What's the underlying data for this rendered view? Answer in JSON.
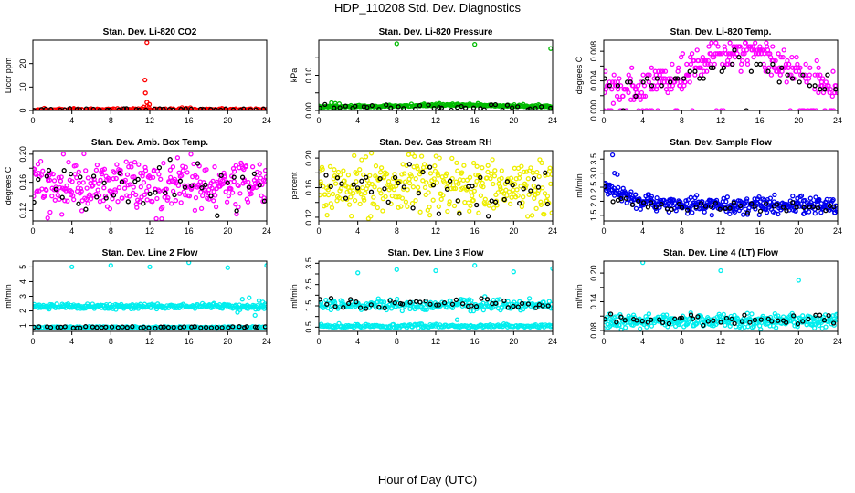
{
  "figure": {
    "title": "HDP_110208 Std. Dev. Diagnostics",
    "xlabel": "Hour of Day (UTC)"
  },
  "chart_data": [
    {
      "type": "scatter",
      "title": "Stan. Dev. Li-820 CO2",
      "ylabel": "Licor ppm",
      "xlim": [
        0,
        24
      ],
      "ylim": [
        0,
        30
      ],
      "xticks": [
        0,
        4,
        8,
        12,
        16,
        20,
        24
      ],
      "yticks": [
        0,
        10,
        20
      ],
      "xtick_labels": [
        "0",
        "4",
        "8",
        "12",
        "16",
        "20",
        "24"
      ],
      "ytick_labels": [
        "0",
        "10",
        "20"
      ],
      "series": [
        {
          "name": "red",
          "color": "#ff0000",
          "gen": {
            "kind": "const",
            "base": 0.4,
            "noise": 0.25,
            "n": 170,
            "seed": 11
          },
          "points": [
            [
              11.7,
              29
            ],
            [
              11.5,
              13
            ],
            [
              11.55,
              7.5
            ],
            [
              11.7,
              3.5
            ],
            [
              11.95,
              2.6
            ],
            [
              11.75,
              1.8
            ],
            [
              11.35,
              1.5
            ],
            [
              11.9,
              1.3
            ],
            [
              15.3,
              1.2
            ],
            [
              4.2,
              0.9
            ]
          ]
        },
        {
          "name": "black",
          "color": "#000000",
          "gen": {
            "kind": "const",
            "base": 0.45,
            "noise": 0.2,
            "n": 40,
            "seed": 12
          }
        }
      ]
    },
    {
      "type": "scatter",
      "title": "Stan. Dev. Li-820 Pressure",
      "ylabel": "kPa",
      "xlim": [
        0,
        24
      ],
      "ylim": [
        0,
        0.2
      ],
      "xticks": [
        0,
        4,
        8,
        12,
        16,
        20,
        24
      ],
      "yticks": [
        0,
        0.05,
        0.1,
        0.15
      ],
      "xtick_labels": [
        "0",
        "4",
        "8",
        "12",
        "16",
        "20",
        "24"
      ],
      "ytick_labels": [
        "0.00",
        "",
        "0.10",
        ""
      ],
      "series": [
        {
          "name": "green",
          "color": "#00bb00",
          "gen": {
            "kind": "bump",
            "base": 0.009,
            "amp": 0.005,
            "peak": 14,
            "noise": 0.005,
            "n": 230,
            "seed": 21
          },
          "points": [
            [
              8,
              0.19
            ],
            [
              16,
              0.188
            ],
            [
              23.8,
              0.176
            ],
            [
              1.3,
              0.022
            ],
            [
              1.7,
              0.02
            ],
            [
              2.1,
              0.019
            ]
          ]
        },
        {
          "name": "black",
          "color": "#000000",
          "gen": {
            "kind": "const",
            "base": 0.009,
            "noise": 0.004,
            "n": 40,
            "seed": 22
          }
        }
      ]
    },
    {
      "type": "scatter",
      "title": "Stan. Dev. Li-820 Temp.",
      "ylabel": "degrees C",
      "xlim": [
        0,
        24
      ],
      "ylim": [
        0,
        0.0095
      ],
      "xticks": [
        0,
        4,
        8,
        12,
        16,
        20,
        24
      ],
      "yticks": [
        0,
        0.002,
        0.004,
        0.006,
        0.008
      ],
      "xtick_labels": [
        "0",
        "4",
        "8",
        "12",
        "16",
        "20",
        "24"
      ],
      "ytick_labels": [
        "0.000",
        "",
        "0.004",
        "",
        "0.008"
      ],
      "series": [
        {
          "name": "magenta",
          "color": "#ff00ff",
          "gen": {
            "kind": "quant",
            "center": 14,
            "width": 6,
            "peak": 0.0082,
            "low": 0.003,
            "step": 0.00048,
            "zeroEdge": 0.04,
            "noise": 0.0011,
            "n": 330,
            "seed": 31
          }
        },
        {
          "name": "black",
          "color": "#000000",
          "gen": {
            "kind": "quant",
            "center": 14,
            "width": 6,
            "peak": 0.0065,
            "low": 0.003,
            "step": 0.00048,
            "zeroEdge": 0.02,
            "noise": 0.0009,
            "n": 45,
            "seed": 32
          }
        }
      ]
    },
    {
      "type": "scatter",
      "title": "Stan. Dev. Amb. Box Temp.",
      "ylabel": "degrees C",
      "xlim": [
        0,
        24
      ],
      "ylim": [
        0.105,
        0.205
      ],
      "xticks": [
        0,
        4,
        8,
        12,
        16,
        20,
        24
      ],
      "yticks": [
        0.12,
        0.14,
        0.16,
        0.18,
        0.2
      ],
      "xtick_labels": [
        "0",
        "4",
        "8",
        "12",
        "16",
        "20",
        "24"
      ],
      "ytick_labels": [
        "0.12",
        "",
        "0.16",
        "",
        "0.20"
      ],
      "series": [
        {
          "name": "magenta",
          "color": "#ff00ff",
          "gen": {
            "kind": "const",
            "base": 0.155,
            "noise": 0.018,
            "n": 340,
            "seed": 41
          }
        },
        {
          "name": "black",
          "color": "#000000",
          "gen": {
            "kind": "const",
            "base": 0.152,
            "noise": 0.016,
            "n": 45,
            "seed": 42
          }
        }
      ]
    },
    {
      "type": "scatter",
      "title": "Stan. Dev. Gas Stream RH",
      "ylabel": "percent",
      "xlim": [
        0,
        24
      ],
      "ylim": [
        0.115,
        0.21
      ],
      "xticks": [
        0,
        4,
        8,
        12,
        16,
        20,
        24
      ],
      "yticks": [
        0.12,
        0.14,
        0.16,
        0.18,
        0.2
      ],
      "xtick_labels": [
        "0",
        "4",
        "8",
        "12",
        "16",
        "20",
        "24"
      ],
      "ytick_labels": [
        "0.12",
        "",
        "0.16",
        "",
        "0.20"
      ],
      "series": [
        {
          "name": "yellow",
          "color": "#eeee00",
          "gen": {
            "kind": "const",
            "base": 0.162,
            "noise": 0.02,
            "n": 340,
            "seed": 51
          }
        },
        {
          "name": "black",
          "color": "#000000",
          "gen": {
            "kind": "const",
            "base": 0.161,
            "noise": 0.016,
            "n": 45,
            "seed": 52
          }
        }
      ]
    },
    {
      "type": "scatter",
      "title": "Stan. Dev. Sample Flow",
      "ylabel": "ml/min",
      "xlim": [
        0,
        24
      ],
      "ylim": [
        1.3,
        3.8
      ],
      "xticks": [
        0,
        4,
        8,
        12,
        16,
        20,
        24
      ],
      "yticks": [
        1.5,
        2.0,
        2.5,
        3.0,
        3.5
      ],
      "xtick_labels": [
        "0",
        "4",
        "8",
        "12",
        "16",
        "20",
        "24"
      ],
      "ytick_labels": [
        "1.5",
        "2.0",
        "2.5",
        "3.0",
        "3.5"
      ],
      "series": [
        {
          "name": "blue",
          "color": "#0000ee",
          "gen": {
            "kind": "decay",
            "start": 2.55,
            "end": 1.85,
            "tau": 2.5,
            "noise": 0.14,
            "n": 340,
            "seed": 61
          },
          "points": [
            [
              0.9,
              3.65
            ],
            [
              1.1,
              3.0
            ],
            [
              1.4,
              2.95
            ],
            [
              20.5,
              1.55
            ],
            [
              22.3,
              1.6
            ]
          ]
        },
        {
          "name": "black",
          "color": "#000000",
          "gen": {
            "kind": "decay",
            "start": 2.4,
            "end": 1.8,
            "tau": 2.5,
            "noise": 0.1,
            "n": 45,
            "seed": 62
          }
        }
      ]
    },
    {
      "type": "scatter",
      "title": "Stan. Dev. Line 2 Flow",
      "ylabel": "ml/min",
      "xlim": [
        0,
        24
      ],
      "ylim": [
        0.6,
        5.4
      ],
      "xticks": [
        0,
        4,
        8,
        12,
        16,
        20,
        24
      ],
      "yticks": [
        1,
        2,
        3,
        4,
        5
      ],
      "xtick_labels": [
        "0",
        "4",
        "8",
        "12",
        "16",
        "20",
        "24"
      ],
      "ytick_labels": [
        "1",
        "2",
        "3",
        "4",
        "5"
      ],
      "series": [
        {
          "name": "cyan-high",
          "color": "#00eeee",
          "gen": {
            "kind": "const",
            "base": 2.3,
            "noise": 0.09,
            "n": 260,
            "seed": 71
          },
          "points": [
            [
              4,
              5.0
            ],
            [
              8,
              5.1
            ],
            [
              12,
              5.0
            ],
            [
              16,
              5.3
            ],
            [
              20,
              4.95
            ],
            [
              24,
              5.1
            ],
            [
              21.5,
              2.8
            ],
            [
              22.2,
              2.9
            ],
            [
              23.2,
              2.7
            ],
            [
              22.8,
              1.7
            ],
            [
              21.0,
              1.9
            ],
            [
              23.6,
              2.6
            ]
          ]
        },
        {
          "name": "cyan-low",
          "color": "#00eeee",
          "gen": {
            "kind": "const",
            "base": 0.88,
            "noise": 0.03,
            "n": 170,
            "seed": 72
          }
        },
        {
          "name": "black",
          "color": "#000000",
          "gen": {
            "kind": "const",
            "base": 0.88,
            "noise": 0.03,
            "n": 45,
            "seed": 73
          }
        }
      ]
    },
    {
      "type": "scatter",
      "title": "Stan. Dev. Line 3 Flow",
      "ylabel": "ml/min",
      "xlim": [
        0,
        24
      ],
      "ylim": [
        0.3,
        3.6
      ],
      "xticks": [
        0,
        4,
        8,
        12,
        16,
        20,
        24
      ],
      "yticks": [
        0.5,
        1.0,
        1.5,
        2.0,
        2.5,
        3.0,
        3.5
      ],
      "xtick_labels": [
        "0",
        "4",
        "8",
        "12",
        "16",
        "20",
        "24"
      ],
      "ytick_labels": [
        "0.5",
        "",
        "1.5",
        "",
        "2.5",
        "",
        "3.5"
      ],
      "series": [
        {
          "name": "cyan-high",
          "color": "#00eeee",
          "gen": {
            "kind": "const",
            "base": 1.55,
            "noise": 0.14,
            "n": 240,
            "seed": 81
          },
          "points": [
            [
              4,
              3.05
            ],
            [
              8,
              3.2
            ],
            [
              12,
              3.15
            ],
            [
              16,
              3.4
            ],
            [
              20,
              3.1
            ],
            [
              24,
              3.25
            ],
            [
              14.2,
              0.85
            ]
          ]
        },
        {
          "name": "cyan-low",
          "color": "#00eeee",
          "gen": {
            "kind": "const",
            "base": 0.55,
            "noise": 0.04,
            "n": 190,
            "seed": 82
          }
        },
        {
          "name": "black",
          "color": "#000000",
          "gen": {
            "kind": "const",
            "base": 1.6,
            "noise": 0.13,
            "n": 45,
            "seed": 83
          }
        }
      ]
    },
    {
      "type": "scatter",
      "title": "Stan. Dev. Line 4 (LT) Flow",
      "ylabel": "ml/min",
      "xlim": [
        0,
        24
      ],
      "ylim": [
        0.078,
        0.225
      ],
      "xticks": [
        0,
        4,
        8,
        12,
        16,
        20,
        24
      ],
      "yticks": [
        0.08,
        0.11,
        0.14,
        0.17,
        0.2
      ],
      "xtick_labels": [
        "0",
        "4",
        "8",
        "12",
        "16",
        "20",
        "24"
      ],
      "ytick_labels": [
        "0.08",
        "",
        "0.14",
        "",
        "0.20"
      ],
      "series": [
        {
          "name": "cyan",
          "color": "#00eeee",
          "gen": {
            "kind": "const",
            "base": 0.1,
            "noise": 0.007,
            "n": 330,
            "seed": 91
          },
          "points": [
            [
              4,
              0.222
            ],
            [
              12,
              0.205
            ],
            [
              20,
              0.185
            ]
          ]
        },
        {
          "name": "black",
          "color": "#000000",
          "gen": {
            "kind": "const",
            "base": 0.101,
            "noise": 0.007,
            "n": 45,
            "seed": 92
          }
        }
      ]
    }
  ]
}
